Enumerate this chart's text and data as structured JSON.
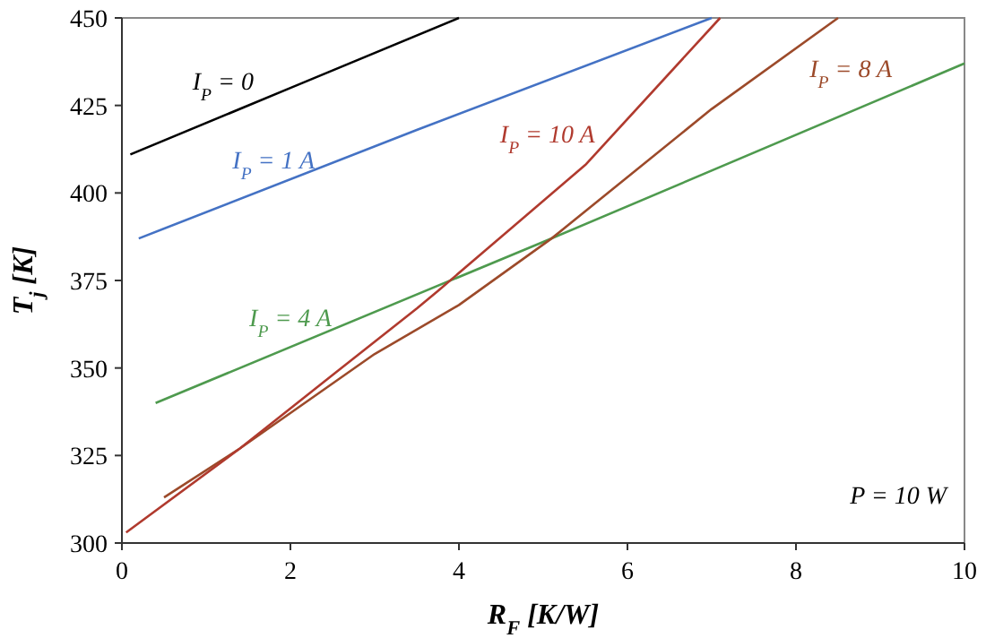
{
  "chart_data": {
    "type": "line",
    "xlabel": "R$_{F}$ [K/W]",
    "ylabel": "T$_{j}$ [K]",
    "xlim": [
      0,
      10
    ],
    "ylim": [
      300,
      450
    ],
    "xticks": [
      0,
      2,
      4,
      6,
      8,
      10
    ],
    "yticks": [
      300,
      325,
      350,
      375,
      400,
      425,
      450
    ],
    "marker": "none",
    "line_style": "solid",
    "series": [
      {
        "name": "I$_{P}$ = 0",
        "color": "#000000",
        "x": [
          0.1,
          2,
          4
        ],
        "values": [
          411,
          430,
          450
        ]
      },
      {
        "name": "I$_{P}$ = 1 A",
        "color": "#4472c4",
        "x": [
          0.2,
          3.5,
          7
        ],
        "values": [
          387,
          418,
          450
        ]
      },
      {
        "name": "I$_{P}$ = 4 A",
        "color": "#4e9a4e",
        "x": [
          0.4,
          5,
          10
        ],
        "values": [
          340,
          386,
          437
        ]
      },
      {
        "name": "I$_{P}$ = 8 A",
        "color": "#9c4a2a",
        "x": [
          0.5,
          1.4,
          3,
          4,
          5.1,
          7,
          8.5
        ],
        "values": [
          313,
          327,
          354,
          368,
          387,
          424,
          450
        ]
      },
      {
        "name": "I$_{P}$ = 10 A",
        "color": "#b03a2e",
        "x": [
          0.05,
          1.4,
          2.5,
          3.5,
          3.75,
          5.5,
          7.1
        ],
        "values": [
          303,
          327,
          348,
          367,
          372,
          408,
          450
        ]
      }
    ],
    "annotations": [
      "P = 10 W"
    ]
  }
}
